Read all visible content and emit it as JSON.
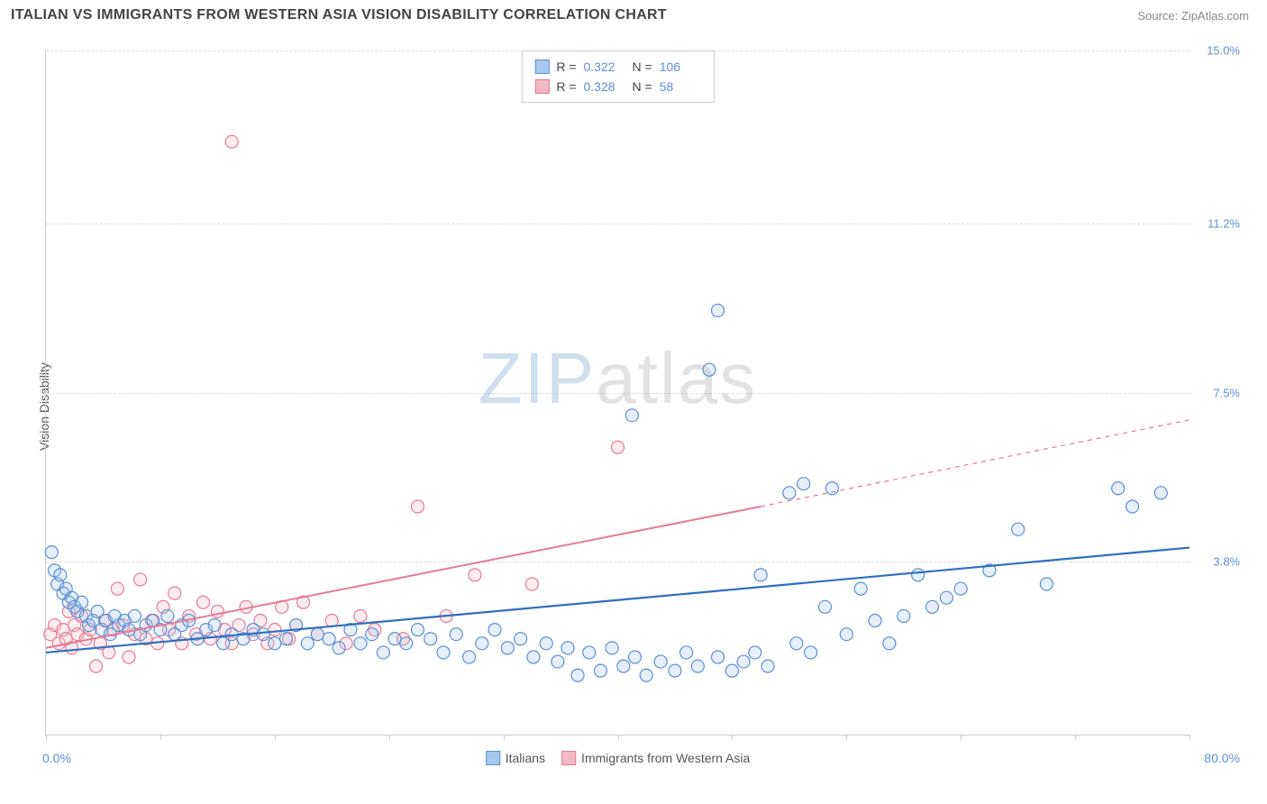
{
  "header": {
    "title": "ITALIAN VS IMMIGRANTS FROM WESTERN ASIA VISION DISABILITY CORRELATION CHART",
    "source": "Source: ZipAtlas.com"
  },
  "watermark": {
    "zip": "ZIP",
    "atlas": "atlas"
  },
  "chart": {
    "type": "scatter",
    "ylabel": "Vision Disability",
    "xlim": [
      0,
      80
    ],
    "ylim": [
      0,
      15
    ],
    "x_axis_start_label": "0.0%",
    "x_axis_end_label": "80.0%",
    "y_ticks": [
      3.8,
      7.5,
      11.2,
      15.0
    ],
    "y_tick_labels": [
      "3.8%",
      "7.5%",
      "11.2%",
      "15.0%"
    ],
    "x_tick_positions": [
      0,
      8,
      16,
      24,
      32,
      40,
      48,
      56,
      64,
      72,
      80
    ],
    "grid_color": "#dddddd",
    "background_color": "#ffffff",
    "axis_color": "#cccccc",
    "point_radius": 7,
    "series": [
      {
        "name": "Italians",
        "fill": "#a7c7ec",
        "stroke": "#5a8fd6",
        "corr_R": "0.322",
        "corr_N": "106",
        "trend": {
          "x1": 0,
          "y1": 1.8,
          "x2": 80,
          "y2": 4.1,
          "dash": false,
          "color": "#2e6fc0",
          "width": 2.2
        },
        "points": [
          [
            0.4,
            4.0
          ],
          [
            0.6,
            3.6
          ],
          [
            0.8,
            3.3
          ],
          [
            1.0,
            3.5
          ],
          [
            1.2,
            3.1
          ],
          [
            1.4,
            3.2
          ],
          [
            1.6,
            2.9
          ],
          [
            1.8,
            3.0
          ],
          [
            2.0,
            2.8
          ],
          [
            2.2,
            2.7
          ],
          [
            2.5,
            2.9
          ],
          [
            2.8,
            2.6
          ],
          [
            3.0,
            2.4
          ],
          [
            3.3,
            2.5
          ],
          [
            3.6,
            2.7
          ],
          [
            3.9,
            2.3
          ],
          [
            4.2,
            2.5
          ],
          [
            4.5,
            2.2
          ],
          [
            4.8,
            2.6
          ],
          [
            5.1,
            2.4
          ],
          [
            5.5,
            2.5
          ],
          [
            5.8,
            2.3
          ],
          [
            6.2,
            2.6
          ],
          [
            6.6,
            2.2
          ],
          [
            7.0,
            2.4
          ],
          [
            7.5,
            2.5
          ],
          [
            8.0,
            2.3
          ],
          [
            8.5,
            2.6
          ],
          [
            9.0,
            2.2
          ],
          [
            9.5,
            2.4
          ],
          [
            10.0,
            2.5
          ],
          [
            10.6,
            2.1
          ],
          [
            11.2,
            2.3
          ],
          [
            11.8,
            2.4
          ],
          [
            12.4,
            2.0
          ],
          [
            13.0,
            2.2
          ],
          [
            13.8,
            2.1
          ],
          [
            14.5,
            2.3
          ],
          [
            15.2,
            2.2
          ],
          [
            16.0,
            2.0
          ],
          [
            16.8,
            2.1
          ],
          [
            17.5,
            2.4
          ],
          [
            18.3,
            2.0
          ],
          [
            19.0,
            2.2
          ],
          [
            19.8,
            2.1
          ],
          [
            20.5,
            1.9
          ],
          [
            21.3,
            2.3
          ],
          [
            22.0,
            2.0
          ],
          [
            22.8,
            2.2
          ],
          [
            23.6,
            1.8
          ],
          [
            24.4,
            2.1
          ],
          [
            25.2,
            2.0
          ],
          [
            26.0,
            2.3
          ],
          [
            26.9,
            2.1
          ],
          [
            27.8,
            1.8
          ],
          [
            28.7,
            2.2
          ],
          [
            29.6,
            1.7
          ],
          [
            30.5,
            2.0
          ],
          [
            31.4,
            2.3
          ],
          [
            32.3,
            1.9
          ],
          [
            33.2,
            2.1
          ],
          [
            34.1,
            1.7
          ],
          [
            35.0,
            2.0
          ],
          [
            35.8,
            1.6
          ],
          [
            36.5,
            1.9
          ],
          [
            37.2,
            1.3
          ],
          [
            38.0,
            1.8
          ],
          [
            38.8,
            1.4
          ],
          [
            39.6,
            1.9
          ],
          [
            40.4,
            1.5
          ],
          [
            41.2,
            1.7
          ],
          [
            42.0,
            1.3
          ],
          [
            41.0,
            7.0
          ],
          [
            43.0,
            1.6
          ],
          [
            44.0,
            1.4
          ],
          [
            44.8,
            1.8
          ],
          [
            45.6,
            1.5
          ],
          [
            46.4,
            8.0
          ],
          [
            47.0,
            1.7
          ],
          [
            47.0,
            9.3
          ],
          [
            48.0,
            1.4
          ],
          [
            48.8,
            1.6
          ],
          [
            49.6,
            1.8
          ],
          [
            50.0,
            3.5
          ],
          [
            50.5,
            1.5
          ],
          [
            52.0,
            5.3
          ],
          [
            52.5,
            2.0
          ],
          [
            53.0,
            5.5
          ],
          [
            53.5,
            1.8
          ],
          [
            54.5,
            2.8
          ],
          [
            55.0,
            5.4
          ],
          [
            56.0,
            2.2
          ],
          [
            57.0,
            3.2
          ],
          [
            58.0,
            2.5
          ],
          [
            59.0,
            2.0
          ],
          [
            60.0,
            2.6
          ],
          [
            61.0,
            3.5
          ],
          [
            62.0,
            2.8
          ],
          [
            63.0,
            3.0
          ],
          [
            64.0,
            3.2
          ],
          [
            66.0,
            3.6
          ],
          [
            68.0,
            4.5
          ],
          [
            70.0,
            3.3
          ],
          [
            75.0,
            5.4
          ],
          [
            76.0,
            5.0
          ],
          [
            78.0,
            5.3
          ]
        ]
      },
      {
        "name": "Immigrants from Western Asia",
        "fill": "#f3b9c5",
        "stroke": "#e67a94",
        "corr_R": "0.328",
        "corr_N": "58",
        "trend_solid": {
          "x1": 0,
          "y1": 1.9,
          "x2": 50,
          "y2": 5.0,
          "color": "#e67a94",
          "width": 2
        },
        "trend_dash": {
          "x1": 50,
          "y1": 5.0,
          "x2": 80,
          "y2": 6.9,
          "color": "#e67a94",
          "width": 1.2
        },
        "points": [
          [
            0.3,
            2.2
          ],
          [
            0.6,
            2.4
          ],
          [
            0.9,
            2.0
          ],
          [
            1.2,
            2.3
          ],
          [
            1.4,
            2.1
          ],
          [
            1.6,
            2.7
          ],
          [
            1.8,
            1.9
          ],
          [
            2.0,
            2.4
          ],
          [
            2.2,
            2.2
          ],
          [
            2.5,
            2.6
          ],
          [
            2.8,
            2.1
          ],
          [
            3.1,
            2.3
          ],
          [
            3.5,
            1.5
          ],
          [
            3.8,
            2.0
          ],
          [
            4.1,
            2.5
          ],
          [
            4.4,
            1.8
          ],
          [
            4.7,
            2.3
          ],
          [
            5.0,
            3.2
          ],
          [
            5.4,
            2.4
          ],
          [
            5.8,
            1.7
          ],
          [
            6.2,
            2.2
          ],
          [
            6.6,
            3.4
          ],
          [
            7.0,
            2.1
          ],
          [
            7.4,
            2.5
          ],
          [
            7.8,
            2.0
          ],
          [
            8.2,
            2.8
          ],
          [
            8.6,
            2.3
          ],
          [
            9.0,
            3.1
          ],
          [
            9.5,
            2.0
          ],
          [
            10.0,
            2.6
          ],
          [
            10.5,
            2.2
          ],
          [
            11.0,
            2.9
          ],
          [
            11.5,
            2.1
          ],
          [
            12.0,
            2.7
          ],
          [
            12.5,
            2.3
          ],
          [
            13.0,
            2.0
          ],
          [
            13.0,
            13.0
          ],
          [
            13.5,
            2.4
          ],
          [
            14.0,
            2.8
          ],
          [
            14.5,
            2.2
          ],
          [
            15.0,
            2.5
          ],
          [
            15.5,
            2.0
          ],
          [
            16.0,
            2.3
          ],
          [
            16.5,
            2.8
          ],
          [
            17.0,
            2.1
          ],
          [
            17.5,
            2.4
          ],
          [
            18.0,
            2.9
          ],
          [
            19.0,
            2.2
          ],
          [
            20.0,
            2.5
          ],
          [
            21.0,
            2.0
          ],
          [
            22.0,
            2.6
          ],
          [
            23.0,
            2.3
          ],
          [
            25.0,
            2.1
          ],
          [
            26.0,
            5.0
          ],
          [
            28.0,
            2.6
          ],
          [
            30.0,
            3.5
          ],
          [
            34.0,
            3.3
          ],
          [
            40.0,
            6.3
          ]
        ]
      }
    ],
    "bottom_legend": [
      {
        "swatch_fill": "#a7c7ec",
        "swatch_stroke": "#5a8fd6",
        "label": "Italians"
      },
      {
        "swatch_fill": "#f3b9c5",
        "swatch_stroke": "#e67a94",
        "label": "Immigrants from Western Asia"
      }
    ]
  }
}
